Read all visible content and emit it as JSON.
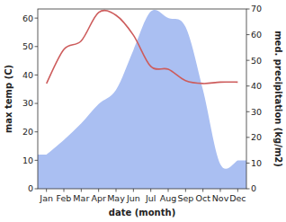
{
  "chart_data": {
    "type": "line",
    "x_label": "date (month)",
    "y_label": "max temp (C)",
    "y2_label": "med. precipitation (kg/m2)",
    "categories": [
      "Jan",
      "Feb",
      "Mar",
      "Apr",
      "May",
      "Jun",
      "Jul",
      "Aug",
      "Sep",
      "Oct",
      "Nov",
      "Dec"
    ],
    "ylim": [
      0,
      63.2
    ],
    "yticks": [
      0,
      10,
      20,
      30,
      40,
      50,
      60
    ],
    "y2lim": [
      0,
      70
    ],
    "y2ticks": [
      0,
      10,
      20,
      30,
      40,
      50,
      60,
      70
    ],
    "series": [
      {
        "type": "area",
        "axis": "y2",
        "color": "#aabff2",
        "values": [
          13.3,
          19,
          25.5,
          33,
          38.5,
          54,
          69,
          66.5,
          63,
          38.5,
          9.5,
          11
        ]
      },
      {
        "type": "line",
        "color": "#cd5c5c",
        "values": [
          37,
          49,
          52,
          62,
          61,
          54,
          43,
          42,
          38,
          37,
          37.5,
          37.5
        ]
      }
    ]
  }
}
